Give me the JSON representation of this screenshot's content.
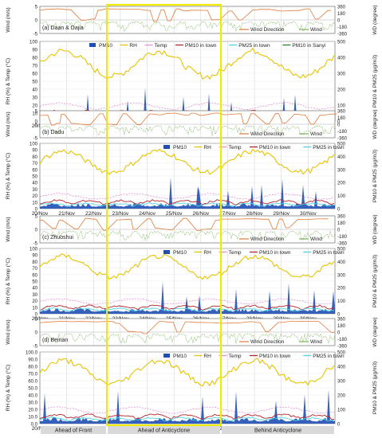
{
  "figure": {
    "date_labels": [
      "20/Nov",
      "21/Nov",
      "22/Nov",
      "23/Nov",
      "24/Nov",
      "25/Nov",
      "26/Nov",
      "27/Nov",
      "28/Nov",
      "29/Nov",
      "30/Nov"
    ],
    "period_labels": [
      "Ahead of Front",
      "Ahead of Anticyclone",
      "Behind Anticyclone"
    ],
    "highlight_range": [
      "22/Nov 12:00",
      "26/Nov 18:00"
    ],
    "colors": {
      "PM10": "#1f4fb4",
      "RH": "#e6c400",
      "Temp": "#e58fd8",
      "PM10_in_town": "#b3262e",
      "PM25_in_town": "#4fd2e6",
      "PM10_in_Sanyi": "#2e7d32",
      "wind": "#7cb35a",
      "wind_direction": "#e07a3a",
      "highlight": "#f0ec00"
    }
  },
  "chart_data": [
    {
      "type": "line",
      "panel": "wind",
      "station": "(a) Daan & Dajia",
      "ylabel_left": "Wind (m/s)",
      "ylabel_right": "WD (degree)",
      "left_ticks": [
        "5",
        "0",
        "-5"
      ],
      "right_ticks": [
        "360",
        "180",
        "0",
        "-180",
        "-360"
      ],
      "legend": [
        "Wind Direction",
        "Wind"
      ],
      "ylim": [
        -5,
        5
      ],
      "x_days": [
        20,
        31
      ]
    },
    {
      "type": "area",
      "panel": "pm",
      "station": "(a) Daan & Dajia",
      "ylabel_left": "RH (%) & Temp (°C)",
      "ylabel_right": "PM10 & PM25 (μg/m3)",
      "left_ticks": [
        "100",
        "90",
        "80",
        "70",
        "60",
        "50",
        "40",
        "30",
        "20",
        "10",
        "0"
      ],
      "right_ticks": [
        "500",
        "400",
        "300",
        "200",
        "100",
        "0"
      ],
      "legend": [
        "PM10",
        "RH",
        "Temp",
        "PM10 in town",
        "PM25 in town",
        "PM10 in Sanyi"
      ],
      "ylim": [
        0,
        100
      ],
      "ylim_right": [
        0,
        500
      ],
      "x_days": [
        20,
        31
      ]
    },
    {
      "type": "line",
      "panel": "wind",
      "station": "(b) Dadu",
      "ylabel_left": "Wind (m/s)",
      "ylabel_right": "WD (degree)",
      "left_ticks": [
        "5",
        "0",
        "-5"
      ],
      "right_ticks": [
        "360",
        "180",
        "0",
        "-180",
        "-360"
      ],
      "legend": [
        "Wind Direction",
        "Wind"
      ],
      "ylim": [
        -5,
        5
      ],
      "x_days": [
        20,
        31
      ]
    },
    {
      "type": "area",
      "panel": "pm",
      "station": "(b) Dadu",
      "ylabel_left": "RH (%) & Temp (°C)",
      "ylabel_right": "PM10 & PM25 (μg/m3)",
      "left_ticks": [
        "100",
        "90",
        "80",
        "70",
        "60",
        "50",
        "40",
        "30",
        "20",
        "10",
        "0"
      ],
      "right_ticks": [
        "500",
        "400",
        "300",
        "200",
        "100",
        "0"
      ],
      "legend": [
        "PM10",
        "RH",
        "Temp",
        "PM10 in town",
        "PM25 in town"
      ],
      "ylim": [
        0,
        100
      ],
      "ylim_right": [
        0,
        500
      ],
      "x_days": [
        20,
        31
      ]
    },
    {
      "type": "line",
      "panel": "wind",
      "station": "(c) Zhuoshui",
      "ylabel_left": "Wind (m/s)",
      "ylabel_right": "WD (degree)",
      "left_ticks": [
        "5",
        "0",
        "-5"
      ],
      "right_ticks": [
        "360",
        "180",
        "0",
        "-180",
        "-360"
      ],
      "legend": [
        "Wind Direction",
        "Wind"
      ],
      "ylim": [
        -5,
        5
      ],
      "x_days": [
        20,
        31
      ]
    },
    {
      "type": "area",
      "panel": "pm",
      "station": "(c) Zhuoshui",
      "ylabel_left": "RH (%) & Temp (°C)",
      "ylabel_right": "PM10 & PM25 (μg/m3)",
      "left_ticks": [
        "100",
        "90",
        "80",
        "70",
        "60",
        "50",
        "40",
        "30",
        "20",
        "10",
        "0"
      ],
      "right_ticks": [
        "500",
        "400",
        "300",
        "200",
        "100",
        "0"
      ],
      "legend": [
        "PM10",
        "RH",
        "Temp",
        "PM10 in town",
        "PM25 in town"
      ],
      "ylim": [
        0,
        100
      ],
      "ylim_right": [
        0,
        500
      ],
      "x_days": [
        20,
        31
      ]
    },
    {
      "type": "line",
      "panel": "wind",
      "station": "(d) Beinan",
      "ylabel_left": "Wind (m/s)",
      "ylabel_right": "WD (degree)",
      "left_ticks": [
        "5",
        "0",
        "-5"
      ],
      "right_ticks": [
        "360",
        "180",
        "0",
        "-180",
        "-360"
      ],
      "legend": [
        "Wind Direction",
        "Wind"
      ],
      "ylim": [
        -5,
        5
      ],
      "x_days": [
        20,
        31
      ]
    },
    {
      "type": "area",
      "panel": "pm",
      "station": "(d) Beinan",
      "ylabel_left": "RH (%) & Temp (°C)",
      "ylabel_right": "PM10 & PM25 (μg/m3)",
      "left_ticks": [
        "100.0",
        "90.0",
        "80.0",
        "70.0",
        "60.0",
        "50.0",
        "40.0",
        "30.0",
        "20.0",
        "10.0",
        "0.0"
      ],
      "right_ticks": [
        "500",
        "400",
        "300",
        "200",
        "100",
        "0"
      ],
      "legend": [
        "PM10",
        "RH",
        "Temp",
        "PM10 in town",
        "PM25 in town"
      ],
      "ylim": [
        0,
        100
      ],
      "ylim_right": [
        0,
        500
      ],
      "x_days": [
        20,
        31
      ]
    }
  ]
}
